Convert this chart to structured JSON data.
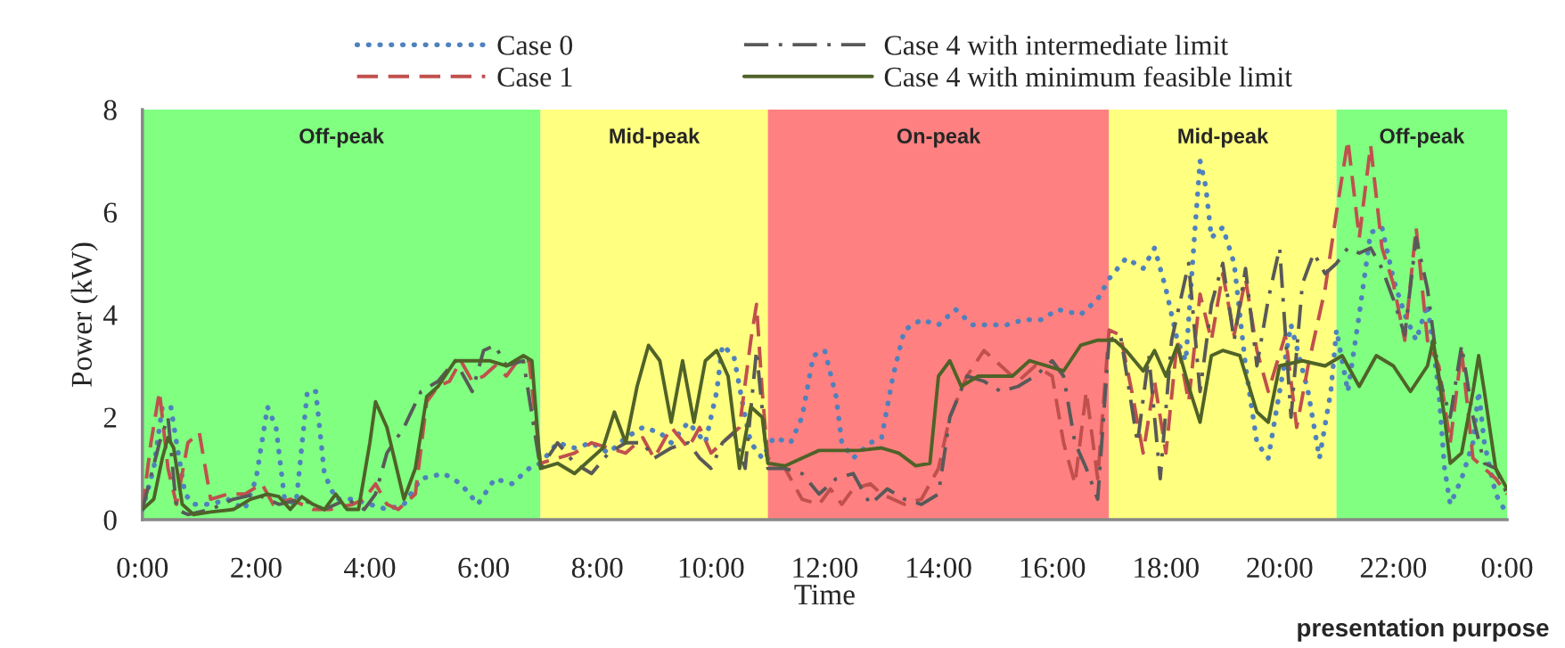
{
  "chart_data": {
    "type": "line",
    "xlabel": "Time",
    "ylabel": "Power (kW)",
    "xlim": [
      0,
      24
    ],
    "ylim": [
      0,
      8
    ],
    "xticks": [
      {
        "value": 0,
        "label": "0:00"
      },
      {
        "value": 2,
        "label": "2:00"
      },
      {
        "value": 4,
        "label": "4:00"
      },
      {
        "value": 6,
        "label": "6:00"
      },
      {
        "value": 8,
        "label": "8:00"
      },
      {
        "value": 10,
        "label": "10:00"
      },
      {
        "value": 12,
        "label": "12:00"
      },
      {
        "value": 14,
        "label": "14:00"
      },
      {
        "value": 16,
        "label": "16:00"
      },
      {
        "value": 18,
        "label": "18:00"
      },
      {
        "value": 20,
        "label": "20:00"
      },
      {
        "value": 22,
        "label": "22:00"
      },
      {
        "value": 24,
        "label": "0:00"
      }
    ],
    "yticks": [
      0,
      2,
      4,
      6,
      8
    ],
    "grid": false,
    "legend": "top",
    "marker": "none",
    "bands": [
      {
        "axis": "x",
        "from": 0,
        "to": 7,
        "label": "Off-peak",
        "color": "#80ff80"
      },
      {
        "axis": "x",
        "from": 7,
        "to": 11,
        "label": "Mid-peak",
        "color": "#ffff80"
      },
      {
        "axis": "x",
        "from": 11,
        "to": 17,
        "label": "On-peak",
        "color": "#ff8080"
      },
      {
        "axis": "x",
        "from": 17,
        "to": 21,
        "label": "Mid-peak",
        "color": "#ffff80"
      },
      {
        "axis": "x",
        "from": 21,
        "to": 24,
        "label": "Off-peak",
        "color": "#80ff80"
      }
    ],
    "annotations": [
      "presentation purpose"
    ],
    "series": [
      {
        "name": "Case 0",
        "color": "#4f81bd",
        "line_style": "dotted",
        "x": [
          0,
          0.2,
          0.35,
          0.5,
          0.6,
          0.75,
          0.9,
          1.2,
          1.5,
          1.8,
          2.0,
          2.2,
          2.35,
          2.5,
          2.7,
          2.9,
          3.05,
          3.2,
          3.4,
          3.7,
          4.0,
          4.3,
          4.6,
          4.9,
          5.3,
          5.6,
          5.9,
          6.2,
          6.5,
          6.8,
          7.0,
          7.3,
          7.6,
          7.9,
          8.2,
          8.5,
          8.8,
          9.1,
          9.3,
          9.6,
          9.9,
          10.1,
          10.2,
          10.4,
          10.6,
          10.7,
          10.9,
          11.1,
          11.4,
          11.6,
          11.8,
          12.0,
          12.2,
          12.3,
          12.5,
          12.8,
          13.0,
          13.2,
          13.4,
          13.7,
          14.0,
          14.3,
          14.6,
          14.9,
          15.2,
          15.5,
          15.8,
          16.1,
          16.5,
          16.8,
          17.0,
          17.3,
          17.6,
          17.8,
          18.0,
          18.2,
          18.35,
          18.5,
          18.6,
          18.7,
          18.8,
          19.0,
          19.2,
          19.4,
          19.6,
          19.8,
          20.0,
          20.2,
          20.5,
          20.7,
          20.9,
          21.0,
          21.2,
          21.4,
          21.6,
          21.8,
          22.0,
          22.2,
          22.4,
          22.6,
          22.8,
          22.9,
          23.0,
          23.2,
          23.4,
          23.5,
          23.6,
          23.8,
          24.0
        ],
        "values": [
          0.2,
          1.0,
          2.2,
          2.2,
          1.5,
          0.5,
          0.3,
          0.3,
          0.4,
          0.2,
          0.8,
          2.2,
          1.8,
          0.4,
          0.3,
          2.5,
          2.5,
          0.9,
          0.4,
          0.4,
          0.3,
          0.2,
          0.3,
          0.8,
          0.9,
          0.7,
          0.3,
          0.8,
          0.7,
          1.0,
          1.1,
          1.5,
          1.4,
          1.5,
          1.3,
          1.6,
          1.8,
          1.7,
          1.5,
          1.9,
          1.5,
          2.5,
          3.4,
          3.2,
          2.0,
          1.5,
          1.2,
          1.6,
          1.5,
          2.0,
          3.2,
          3.3,
          2.4,
          1.5,
          1.2,
          1.5,
          1.6,
          2.8,
          3.7,
          3.9,
          3.8,
          4.1,
          3.8,
          3.8,
          3.8,
          3.9,
          3.9,
          4.1,
          4.0,
          4.3,
          4.7,
          5.1,
          4.9,
          5.3,
          4.5,
          3.5,
          3.1,
          5.5,
          7.0,
          6.5,
          5.5,
          5.7,
          5.0,
          3.0,
          1.5,
          1.2,
          2.5,
          3.8,
          2.5,
          1.2,
          2.5,
          3.7,
          2.5,
          4.0,
          5.6,
          5.7,
          4.7,
          4.0,
          3.5,
          4.2,
          2.5,
          1.0,
          0.3,
          0.8,
          1.5,
          2.5,
          1.5,
          0.5,
          0.1
        ]
      },
      {
        "name": "Case 1",
        "color": "#c0504d",
        "line_style": "dashed",
        "x": [
          0,
          0.15,
          0.3,
          0.45,
          0.6,
          0.8,
          1.0,
          1.2,
          1.5,
          1.8,
          2.1,
          2.3,
          2.6,
          3.0,
          3.3,
          3.7,
          3.9,
          4.1,
          4.3,
          4.5,
          4.8,
          5.0,
          5.2,
          5.4,
          5.6,
          5.8,
          6.0,
          6.2,
          6.4,
          6.6,
          6.8,
          7.0,
          7.3,
          7.6,
          7.9,
          8.2,
          8.5,
          8.8,
          9.0,
          9.3,
          9.6,
          9.8,
          10.0,
          10.3,
          10.5,
          10.7,
          10.8,
          10.9,
          11.0,
          11.3,
          11.6,
          11.9,
          12.1,
          12.3,
          12.5,
          12.8,
          13.0,
          13.4,
          13.7,
          14.0,
          14.2,
          14.5,
          14.8,
          15.1,
          15.4,
          15.7,
          16.0,
          16.2,
          16.4,
          16.6,
          16.8,
          17.0,
          17.2,
          17.4,
          17.6,
          17.8,
          18.0,
          18.2,
          18.4,
          18.6,
          18.8,
          19.0,
          19.2,
          19.4,
          19.6,
          19.8,
          20.1,
          20.3,
          20.5,
          20.8,
          21.0,
          21.2,
          21.4,
          21.6,
          21.8,
          22.0,
          22.2,
          22.4,
          22.6,
          22.8,
          23.0,
          23.2,
          23.4,
          23.6,
          23.8,
          24.0
        ],
        "values": [
          0.2,
          1.5,
          2.5,
          1.0,
          0.3,
          1.5,
          1.7,
          0.4,
          0.5,
          0.5,
          0.7,
          0.3,
          0.4,
          0.2,
          0.2,
          0.3,
          0.4,
          0.7,
          0.3,
          0.2,
          0.5,
          2.3,
          2.6,
          2.7,
          3.1,
          2.7,
          2.8,
          3.0,
          2.8,
          3.1,
          3.1,
          1.1,
          1.2,
          1.3,
          1.5,
          1.4,
          1.3,
          1.6,
          1.2,
          1.8,
          1.4,
          1.8,
          1.3,
          1.6,
          1.8,
          3.5,
          4.2,
          2.5,
          1.2,
          1.0,
          0.4,
          0.3,
          0.6,
          0.3,
          0.6,
          0.7,
          0.5,
          0.3,
          0.4,
          1.0,
          2.0,
          2.8,
          3.3,
          3.0,
          2.7,
          3.0,
          2.8,
          1.5,
          0.7,
          2.5,
          0.8,
          3.7,
          3.6,
          2.5,
          1.3,
          2.7,
          1.3,
          3.5,
          2.3,
          4.4,
          3.5,
          4.8,
          3.6,
          4.7,
          3.3,
          2.5,
          3.6,
          1.8,
          3.0,
          4.5,
          6.0,
          7.4,
          5.5,
          7.3,
          5.3,
          4.6,
          3.5,
          5.7,
          3.5,
          3.0,
          1.5,
          3.3,
          1.2,
          1.0,
          0.8,
          0.5
        ]
      },
      {
        "name": "Case 4 with intermediate limit",
        "color": "#595959",
        "line_style": "dashdot",
        "x": [
          0,
          0.3,
          0.45,
          0.6,
          0.8,
          1.2,
          1.6,
          2.0,
          2.4,
          2.8,
          3.2,
          3.6,
          3.9,
          4.1,
          4.3,
          4.6,
          4.9,
          5.2,
          5.5,
          5.8,
          6.0,
          6.2,
          6.4,
          6.7,
          7.0,
          7.3,
          7.6,
          7.9,
          8.2,
          8.5,
          8.8,
          9.0,
          9.3,
          9.6,
          9.8,
          10.0,
          10.2,
          10.4,
          10.6,
          10.8,
          11.0,
          11.3,
          11.6,
          11.9,
          12.2,
          12.5,
          12.8,
          13.1,
          13.4,
          13.7,
          14.0,
          14.2,
          14.5,
          14.8,
          15.1,
          15.4,
          15.7,
          16.0,
          16.2,
          16.4,
          16.6,
          16.8,
          17.0,
          17.2,
          17.5,
          17.7,
          17.9,
          18.1,
          18.4,
          18.6,
          18.8,
          19.0,
          19.2,
          19.4,
          19.6,
          19.8,
          20.0,
          20.2,
          20.4,
          20.6,
          20.8,
          21.0,
          21.2,
          21.4,
          21.6,
          21.8,
          22.0,
          22.2,
          22.4,
          22.6,
          22.8,
          23.0,
          23.2,
          23.4,
          23.6,
          23.8,
          24.0
        ],
        "values": [
          0.2,
          1.5,
          2.0,
          0.2,
          0.1,
          0.2,
          0.4,
          0.5,
          0.3,
          0.4,
          0.2,
          0.4,
          0.2,
          0.5,
          1.3,
          1.8,
          2.5,
          2.7,
          3.1,
          2.5,
          3.3,
          3.4,
          3.0,
          3.1,
          1.0,
          1.5,
          1.1,
          0.9,
          1.3,
          1.5,
          1.5,
          1.2,
          1.4,
          1.5,
          1.2,
          1.0,
          1.5,
          1.7,
          1.0,
          3.3,
          1.0,
          1.0,
          0.9,
          0.5,
          0.8,
          0.9,
          0.3,
          0.6,
          0.4,
          0.3,
          0.5,
          2.0,
          2.8,
          2.7,
          2.5,
          2.6,
          2.8,
          3.1,
          2.8,
          1.5,
          1.0,
          0.4,
          3.5,
          3.6,
          1.5,
          3.2,
          0.8,
          3.5,
          5.0,
          2.5,
          4.2,
          5.0,
          3.5,
          4.9,
          3.0,
          4.3,
          5.3,
          2.0,
          4.6,
          5.2,
          4.8,
          5.0,
          5.3,
          5.2,
          5.3,
          4.9,
          4.3,
          3.6,
          5.5,
          4.5,
          2.8,
          2.0,
          3.4,
          2.0,
          1.1,
          1.0,
          0.5
        ]
      },
      {
        "name": "Case 4 with minimum feasible limit",
        "color": "#4f6228",
        "line_style": "solid",
        "x": [
          0,
          0.2,
          0.35,
          0.45,
          0.55,
          0.7,
          0.9,
          1.2,
          1.6,
          1.9,
          2.2,
          2.4,
          2.6,
          2.8,
          3.0,
          3.2,
          3.4,
          3.6,
          3.8,
          4.0,
          4.1,
          4.3,
          4.6,
          4.8,
          5.0,
          5.2,
          5.5,
          5.8,
          6.1,
          6.4,
          6.7,
          6.85,
          7.0,
          7.3,
          7.6,
          7.9,
          8.1,
          8.3,
          8.5,
          8.7,
          8.9,
          9.1,
          9.3,
          9.5,
          9.7,
          9.9,
          10.1,
          10.3,
          10.5,
          10.7,
          10.9,
          11.0,
          11.3,
          11.6,
          11.9,
          12.2,
          12.6,
          13.0,
          13.3,
          13.6,
          13.85,
          14.0,
          14.2,
          14.4,
          14.7,
          15.0,
          15.3,
          15.6,
          15.9,
          16.2,
          16.5,
          16.8,
          17.1,
          17.3,
          17.6,
          17.8,
          18.0,
          18.2,
          18.4,
          18.6,
          18.8,
          19.0,
          19.3,
          19.6,
          19.8,
          20.0,
          20.4,
          20.8,
          21.1,
          21.4,
          21.7,
          22.0,
          22.3,
          22.6,
          22.7,
          22.9,
          23.0,
          23.2,
          23.4,
          23.5,
          23.6,
          23.8,
          24.0
        ],
        "values": [
          0.2,
          0.4,
          1.2,
          1.6,
          1.4,
          0.3,
          0.1,
          0.15,
          0.2,
          0.4,
          0.5,
          0.45,
          0.2,
          0.45,
          0.3,
          0.2,
          0.5,
          0.2,
          0.2,
          1.5,
          2.3,
          1.8,
          0.4,
          1.0,
          2.4,
          2.6,
          3.1,
          3.1,
          3.1,
          3.0,
          3.2,
          3.1,
          1.0,
          1.1,
          0.9,
          1.2,
          1.4,
          2.1,
          1.5,
          2.6,
          3.4,
          3.1,
          1.9,
          3.1,
          1.9,
          3.1,
          3.3,
          2.8,
          1.0,
          2.2,
          2.0,
          1.1,
          1.05,
          1.2,
          1.35,
          1.35,
          1.35,
          1.4,
          1.3,
          1.05,
          1.1,
          2.8,
          3.1,
          2.6,
          2.8,
          2.8,
          2.8,
          3.1,
          3.0,
          2.9,
          3.4,
          3.5,
          3.5,
          3.3,
          2.9,
          3.3,
          2.8,
          3.4,
          2.6,
          1.9,
          3.2,
          3.3,
          3.2,
          2.1,
          1.9,
          3.0,
          3.1,
          3.0,
          3.2,
          2.6,
          3.2,
          3.0,
          2.5,
          3.0,
          3.5,
          2.0,
          1.1,
          1.3,
          2.5,
          3.2,
          2.5,
          1.0,
          0.6
        ]
      }
    ]
  }
}
